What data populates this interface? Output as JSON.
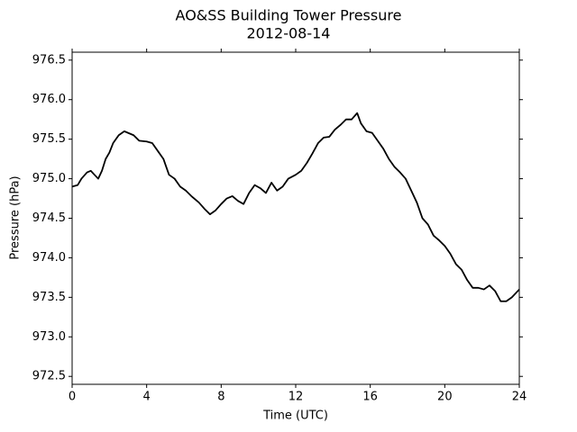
{
  "chart_data": {
    "type": "line",
    "title": "AO&SS Building Tower Pressure",
    "subtitle": "2012-08-14",
    "xlabel": "Time (UTC)",
    "ylabel": "Pressure (hPa)",
    "xlim": [
      0,
      24
    ],
    "xticks": [
      0,
      4,
      8,
      12,
      16,
      20,
      24
    ],
    "ylim": [
      972.4,
      976.6
    ],
    "yticks": [
      {
        "value": 972.5,
        "label": "972.5"
      },
      {
        "value": 973,
        "label": "973.0"
      },
      {
        "value": 973.5,
        "label": "973.5"
      },
      {
        "value": 974,
        "label": "974.0"
      },
      {
        "value": 974.5,
        "label": "974.5"
      },
      {
        "value": 975,
        "label": "975.0"
      },
      {
        "value": 975.5,
        "label": "975.5"
      },
      {
        "value": 976,
        "label": "976.0"
      },
      {
        "value": 976.5,
        "label": "976.5"
      }
    ],
    "grid": false,
    "x": [
      0,
      0.3,
      0.5,
      0.8,
      1.0,
      1.2,
      1.4,
      1.6,
      1.8,
      2.0,
      2.2,
      2.5,
      2.8,
      3.0,
      3.3,
      3.6,
      4.0,
      4.3,
      4.6,
      4.9,
      5.2,
      5.5,
      5.8,
      6.1,
      6.4,
      6.8,
      7.1,
      7.4,
      7.7,
      8.0,
      8.3,
      8.6,
      8.9,
      9.2,
      9.5,
      9.8,
      10.1,
      10.4,
      10.7,
      11.0,
      11.3,
      11.6,
      12.0,
      12.3,
      12.6,
      12.9,
      13.2,
      13.5,
      13.8,
      14.1,
      14.4,
      14.7,
      15.0,
      15.3,
      15.5,
      15.8,
      16.1,
      16.4,
      16.7,
      17.0,
      17.3,
      17.6,
      17.9,
      18.2,
      18.5,
      18.8,
      19.1,
      19.4,
      19.7,
      20.0,
      20.3,
      20.6,
      20.9,
      21.2,
      21.5,
      21.8,
      22.1,
      22.4,
      22.7,
      23.0,
      23.3,
      23.6,
      24.0
    ],
    "series": [
      {
        "name": "Pressure",
        "color": "#000000",
        "values": [
          974.9,
          974.92,
          975.0,
          975.08,
          975.1,
          975.05,
          975.0,
          975.1,
          975.25,
          975.33,
          975.45,
          975.55,
          975.6,
          975.58,
          975.55,
          975.48,
          975.47,
          975.45,
          975.35,
          975.25,
          975.05,
          975.0,
          974.9,
          974.85,
          974.78,
          974.7,
          974.62,
          974.55,
          974.6,
          974.68,
          974.75,
          974.78,
          974.72,
          974.68,
          974.82,
          974.92,
          974.88,
          974.82,
          974.95,
          974.85,
          974.9,
          975.0,
          975.05,
          975.1,
          975.2,
          975.32,
          975.45,
          975.52,
          975.53,
          975.62,
          975.68,
          975.75,
          975.75,
          975.83,
          975.7,
          975.6,
          975.58,
          975.48,
          975.38,
          975.25,
          975.15,
          975.08,
          975.0,
          974.85,
          974.7,
          974.5,
          974.42,
          974.28,
          974.22,
          974.15,
          974.05,
          973.92,
          973.85,
          973.72,
          973.62,
          973.62,
          973.6,
          973.65,
          973.58,
          973.45,
          973.45,
          973.5,
          973.6
        ]
      }
    ]
  }
}
